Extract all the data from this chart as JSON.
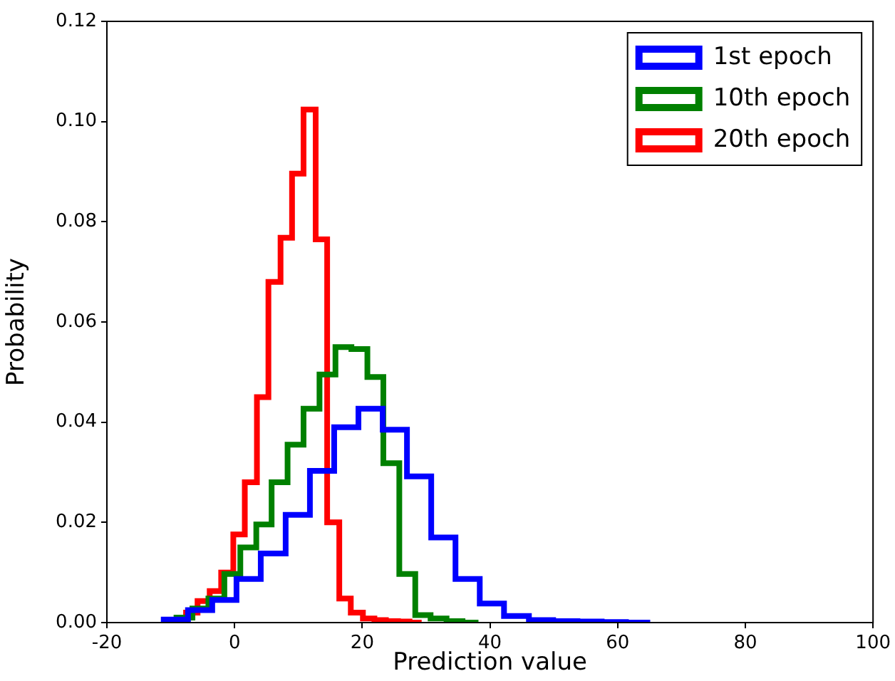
{
  "chart_data": {
    "type": "step",
    "xlabel": "Prediction value",
    "ylabel": "Probability",
    "xlim": [
      -20,
      100
    ],
    "xticks": [
      -20,
      0,
      20,
      40,
      60,
      80,
      100
    ],
    "ylim": [
      0,
      0.12
    ],
    "yticks": [
      {
        "value": 0,
        "label": "0.00"
      },
      {
        "value": 0.02,
        "label": "0.02"
      },
      {
        "value": 0.04,
        "label": "0.04"
      },
      {
        "value": 0.06,
        "label": "0.06"
      },
      {
        "value": 0.08,
        "label": "0.08"
      },
      {
        "value": 0.1,
        "label": "0.10"
      },
      {
        "value": 0.12,
        "label": "0.12"
      }
    ],
    "legend": "top right",
    "grid": false,
    "series": [
      {
        "name": "1st epoch",
        "color": "#0000ff",
        "x": [
          -11.1,
          -11.1,
          -7.3,
          -3.5,
          0.3,
          4.1,
          8.0,
          11.8,
          15.6,
          19.4,
          23.2,
          27.0,
          30.8,
          34.6,
          38.4,
          42.2,
          46.1,
          49.9,
          53.7,
          57.5,
          61.3,
          65.1
        ],
        "values": [
          0,
          0.0005,
          0.0006,
          0.0025,
          0.0045,
          0.0087,
          0.0138,
          0.0215,
          0.0303,
          0.039,
          0.0427,
          0.0385,
          0.0292,
          0.017,
          0.0087,
          0.0038,
          0.0013,
          0.0005,
          0.0003,
          0.0002,
          0.0001,
          0
        ]
      },
      {
        "name": "10th epoch",
        "color": "#008000",
        "x": [
          -9.1,
          -9.1,
          -6.6,
          -4.1,
          -1.6,
          0.9,
          3.4,
          5.8,
          8.3,
          10.8,
          13.3,
          15.8,
          18.3,
          20.8,
          23.3,
          25.8,
          28.3,
          30.7,
          33.2,
          35.7,
          38.2
        ],
        "values": [
          0,
          0.0003,
          0.001,
          0.0028,
          0.0048,
          0.0097,
          0.015,
          0.0196,
          0.028,
          0.0355,
          0.0427,
          0.0495,
          0.055,
          0.0546,
          0.049,
          0.0318,
          0.0097,
          0.0015,
          0.0008,
          0.0003,
          0
        ]
      },
      {
        "name": "20th epoch",
        "color": "#ff0000",
        "x": [
          -7.6,
          -7.6,
          -5.8,
          -3.9,
          -2.1,
          -0.2,
          1.6,
          3.5,
          5.3,
          7.2,
          9.0,
          10.8,
          12.7,
          14.5,
          16.4,
          18.2,
          20.1,
          21.9,
          23.7,
          25.6,
          27.4,
          29.3
        ],
        "values": [
          0,
          0.0006,
          0.002,
          0.0043,
          0.0063,
          0.01,
          0.0176,
          0.028,
          0.045,
          0.068,
          0.0768,
          0.0896,
          0.1024,
          0.0765,
          0.02,
          0.0048,
          0.002,
          0.0008,
          0.0005,
          0.0003,
          0.0002,
          0
        ]
      }
    ]
  }
}
